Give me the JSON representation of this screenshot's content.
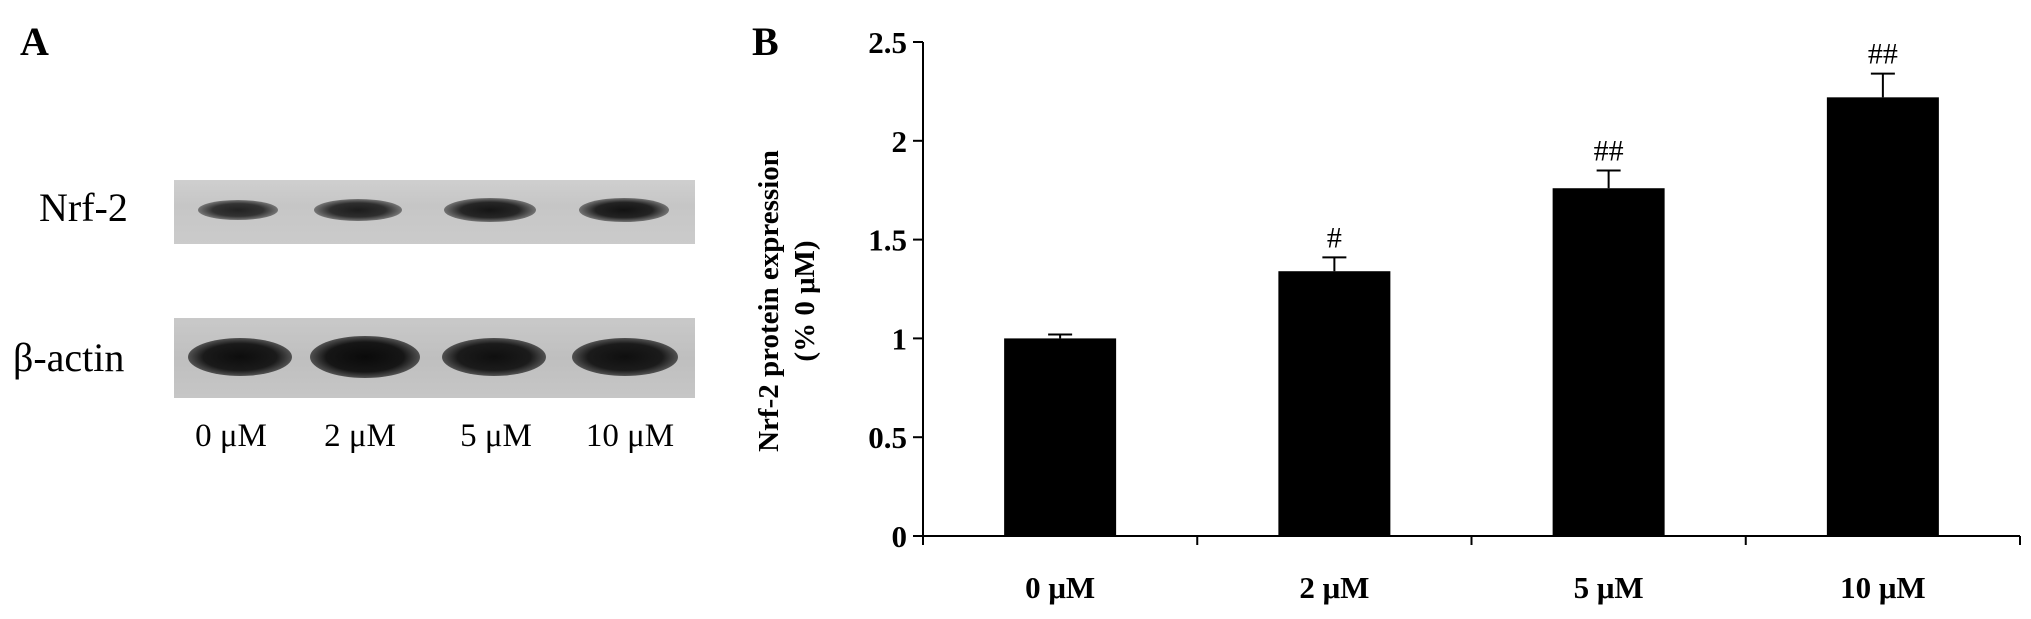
{
  "panel_a": {
    "letter": "A",
    "rows": [
      {
        "label": "Nrf-2"
      },
      {
        "label": "β-actin"
      }
    ],
    "lanes": [
      "0 μM",
      "2 μM",
      "5 μM",
      "10 μM"
    ],
    "band_colors": {
      "strip": "#c8c8c8",
      "band": "#1a1a1a"
    }
  },
  "chart_data": {
    "type": "bar",
    "panel_letter": "B",
    "categories": [
      "0 μM",
      "2 μM",
      "5 μM",
      "10 μM"
    ],
    "values": [
      1.0,
      1.34,
      1.76,
      2.22
    ],
    "errors": [
      0.02,
      0.07,
      0.09,
      0.12
    ],
    "annotations": [
      "",
      "#",
      "##",
      "##"
    ],
    "title": "",
    "xlabel": "",
    "ylabel": "Nrf-2 protein expression",
    "ylabel_line2": "(% 0 μM)",
    "ylim": [
      0,
      2.5
    ],
    "yticks": [
      0,
      0.5,
      1,
      1.5,
      2,
      2.5
    ],
    "ytick_labels": [
      "0",
      "0.5",
      "1",
      "1.5",
      "2",
      "2.5"
    ],
    "grid": false,
    "legend": "none",
    "bar_color": "#000000"
  }
}
